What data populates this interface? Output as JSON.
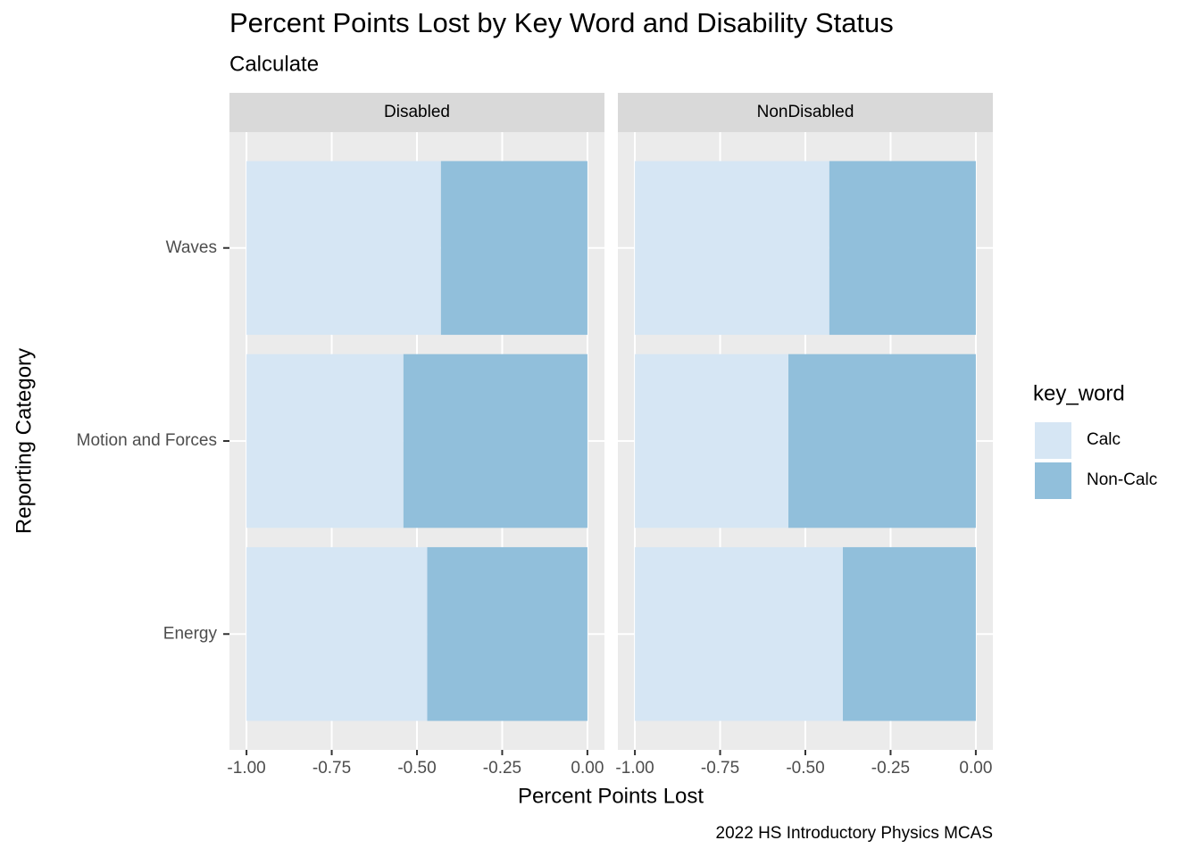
{
  "chart_data": {
    "type": "bar",
    "orientation": "horizontal",
    "stacked": true,
    "title": "Percent Points Lost by Key Word and Disability Status",
    "subtitle": "Calculate",
    "caption": "2022 HS Introductory Physics MCAS",
    "xlabel": "Percent Points Lost",
    "ylabel": "Reporting Category",
    "legend_title": "key_word",
    "legend_position": "right",
    "grid": true,
    "categories": [
      "Energy",
      "Motion and Forces",
      "Waves"
    ],
    "xlim": [
      -1.05,
      0.05
    ],
    "xticks": [
      {
        "value": -1,
        "label": "-1.00"
      },
      {
        "value": -0.75,
        "label": "-0.75"
      },
      {
        "value": -0.5,
        "label": "-0.50"
      },
      {
        "value": -0.25,
        "label": "-0.25"
      },
      {
        "value": 0,
        "label": "0.00"
      }
    ],
    "panels": [
      {
        "name": "Disabled",
        "series": [
          {
            "name": "Calc",
            "color": "#d6e6f4",
            "values": [
              -0.53,
              -0.46,
              -0.57
            ]
          },
          {
            "name": "Non-Calc",
            "color": "#91bfdb",
            "values": [
              -0.47,
              -0.54,
              -0.43
            ]
          }
        ]
      },
      {
        "name": "NonDisabled",
        "series": [
          {
            "name": "Calc",
            "color": "#d6e6f4",
            "values": [
              -0.61,
              -0.45,
              -0.57
            ]
          },
          {
            "name": "Non-Calc",
            "color": "#91bfdb",
            "values": [
              -0.39,
              -0.55,
              -0.43
            ]
          }
        ]
      }
    ]
  }
}
